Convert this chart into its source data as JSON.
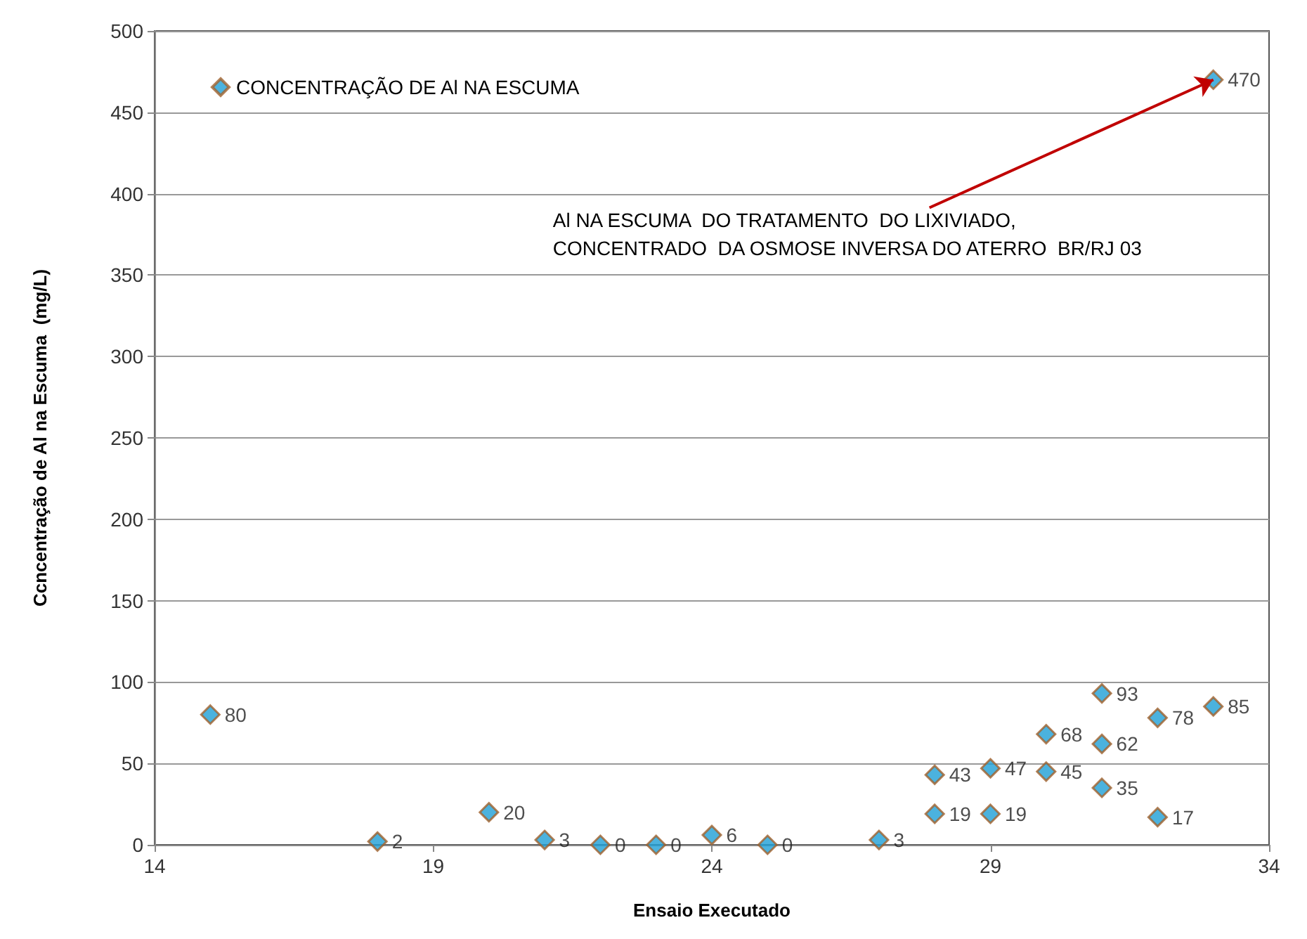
{
  "chart_data": {
    "type": "scatter",
    "xlabel": "Ensaio Executado",
    "ylabel": "Ccncentração de Al na Escuma  (mg/L)",
    "series": [
      {
        "name": "CONCENTRAÇÃO DE Al NA ESCUMA",
        "color": "#1e9fd6",
        "x": [
          15,
          18,
          20,
          21,
          22,
          23,
          24,
          25,
          27,
          28,
          28,
          29,
          29,
          30,
          30,
          31,
          31,
          31,
          32,
          32,
          33,
          33
        ],
        "values": [
          80,
          2,
          20,
          3,
          0,
          0,
          6,
          0,
          3,
          43,
          19,
          47,
          19,
          68,
          45,
          93,
          62,
          35,
          78,
          17,
          85,
          470
        ]
      }
    ],
    "xlim": [
      14,
      34
    ],
    "xticks": [
      14,
      19,
      24,
      29,
      34
    ],
    "ylim": [
      0,
      500
    ],
    "yticks": [
      0,
      50,
      100,
      150,
      200,
      250,
      300,
      350,
      400,
      450,
      500
    ],
    "grid": "y",
    "legend": "top left",
    "marker": "diamond",
    "data_labels": true,
    "annotations": [
      {
        "text": "Al NA ESCUMA  DO TRATAMENTO  DO LIXIVIADO,\nCONCENTRADO  DA OSMOSE INVERSA DO ATERRO  BR/RJ 03",
        "x": 33,
        "y": 470
      }
    ]
  }
}
